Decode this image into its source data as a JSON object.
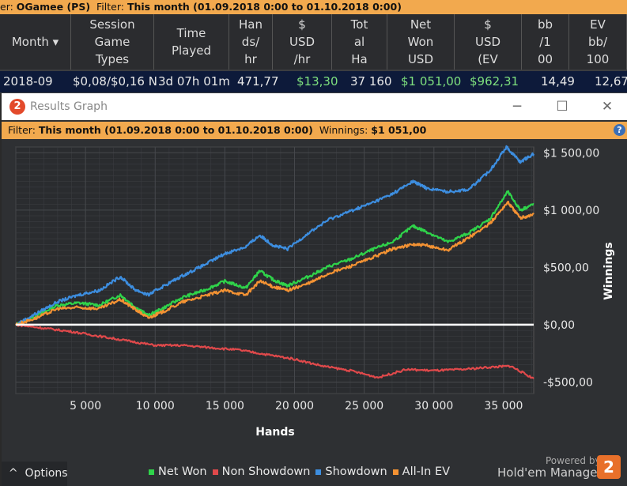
{
  "top": {
    "prefix": "er: ",
    "site": "OGamee (PS)",
    "filter_label": "Filter:",
    "filter_value": "This month (01.09.2018 0:00 to 01.10.2018 0:00)"
  },
  "table": {
    "headers": [
      "Month  ▾",
      "Session\nGame\nTypes",
      "Time\nPlayed",
      "Han\nds/\nhr",
      "$\nUSD\n/hr",
      "Tot\nal\nHa",
      "Net\nWon\nUSD",
      "$\nUSD\n(EV",
      "bb\n/1\n00",
      "EV\nbb/\n100"
    ],
    "row": [
      "2018-09",
      "$0,08/$0,16 N",
      "3d 07h 01m",
      "471,77",
      "$13,30",
      "37 160",
      "$1 051,00",
      "$962,31",
      "14,49",
      "12,67"
    ]
  },
  "window": {
    "title": "Results Graph",
    "logo": "2",
    "minimize": "─",
    "maximize": "☐",
    "close": "✕"
  },
  "filterbar": {
    "label": "Filter:",
    "value": "This month (01.09.2018 0:00 to 01.10.2018 0:00)",
    "winnings_label": "Winnings:",
    "winnings_value": "$1 051,00",
    "help": "?"
  },
  "footer": {
    "options": "Options",
    "options_icon": "chevron-up-icon",
    "powered": "Powered by",
    "brand": "Hold'em Manager",
    "brand_logo": "2"
  },
  "chart_data": {
    "type": "line",
    "xlabel": "Hands",
    "ylabel": "Winnings",
    "xlim": [
      0,
      37160
    ],
    "ylim": [
      -600,
      1550
    ],
    "xticks": [
      5000,
      10000,
      15000,
      20000,
      25000,
      30000,
      35000
    ],
    "xtick_labels": [
      "5 000",
      "10 000",
      "15 000",
      "20 000",
      "25 000",
      "30 000",
      "35 000"
    ],
    "yticks": [
      -500,
      0,
      500,
      1000,
      1500
    ],
    "ytick_labels": [
      "-$500,00",
      "$0,00",
      "$500,00",
      "$1 000,00",
      "$1 500,00"
    ],
    "zero_line_color": "#ffffff",
    "series": [
      {
        "name": "Net Won",
        "color": "#2fd34a",
        "x": [
          0,
          1500,
          3000,
          4500,
          6000,
          7500,
          8500,
          9500,
          10500,
          12000,
          13500,
          15000,
          16500,
          17500,
          18500,
          19500,
          21000,
          22500,
          24000,
          25500,
          27000,
          28500,
          29500,
          31000,
          32500,
          34000,
          35300,
          36200,
          37160
        ],
        "y": [
          0,
          80,
          170,
          190,
          170,
          260,
          160,
          80,
          140,
          240,
          300,
          380,
          320,
          470,
          390,
          340,
          420,
          510,
          570,
          650,
          720,
          860,
          810,
          720,
          800,
          920,
          1160,
          1000,
          1051
        ]
      },
      {
        "name": "Non Showdown",
        "color": "#e0494b",
        "x": [
          0,
          2000,
          4000,
          6000,
          8000,
          10000,
          12000,
          14000,
          16000,
          18000,
          20000,
          22000,
          24000,
          26000,
          28000,
          30000,
          32000,
          34000,
          35500,
          37160
        ],
        "y": [
          0,
          -30,
          -60,
          -100,
          -140,
          -180,
          -180,
          -200,
          -220,
          -260,
          -300,
          -360,
          -400,
          -460,
          -390,
          -400,
          -390,
          -370,
          -360,
          -470
        ]
      },
      {
        "name": "Showdown",
        "color": "#3d8ee0",
        "x": [
          0,
          1500,
          3000,
          4500,
          6000,
          7500,
          8500,
          9500,
          10500,
          12000,
          13500,
          15000,
          16500,
          17500,
          18500,
          19500,
          21000,
          22500,
          24000,
          25500,
          27000,
          28500,
          29500,
          31000,
          32500,
          34000,
          35200,
          36200,
          37160
        ],
        "y": [
          0,
          100,
          200,
          260,
          300,
          420,
          310,
          260,
          330,
          430,
          520,
          620,
          680,
          780,
          690,
          660,
          800,
          920,
          990,
          1060,
          1140,
          1250,
          1190,
          1160,
          1180,
          1340,
          1550,
          1420,
          1490
        ]
      },
      {
        "name": "All-In EV",
        "color": "#f39233",
        "x": [
          0,
          1500,
          3000,
          4500,
          6000,
          7500,
          8500,
          9500,
          10500,
          12000,
          13500,
          15000,
          16500,
          17500,
          18500,
          19500,
          21000,
          22500,
          24000,
          25500,
          27000,
          28500,
          29500,
          31000,
          32500,
          34000,
          35300,
          36200,
          37160
        ],
        "y": [
          0,
          60,
          140,
          150,
          140,
          220,
          140,
          60,
          110,
          200,
          250,
          300,
          260,
          380,
          330,
          300,
          360,
          450,
          510,
          580,
          660,
          700,
          690,
          650,
          760,
          880,
          1070,
          930,
          962
        ]
      }
    ]
  }
}
